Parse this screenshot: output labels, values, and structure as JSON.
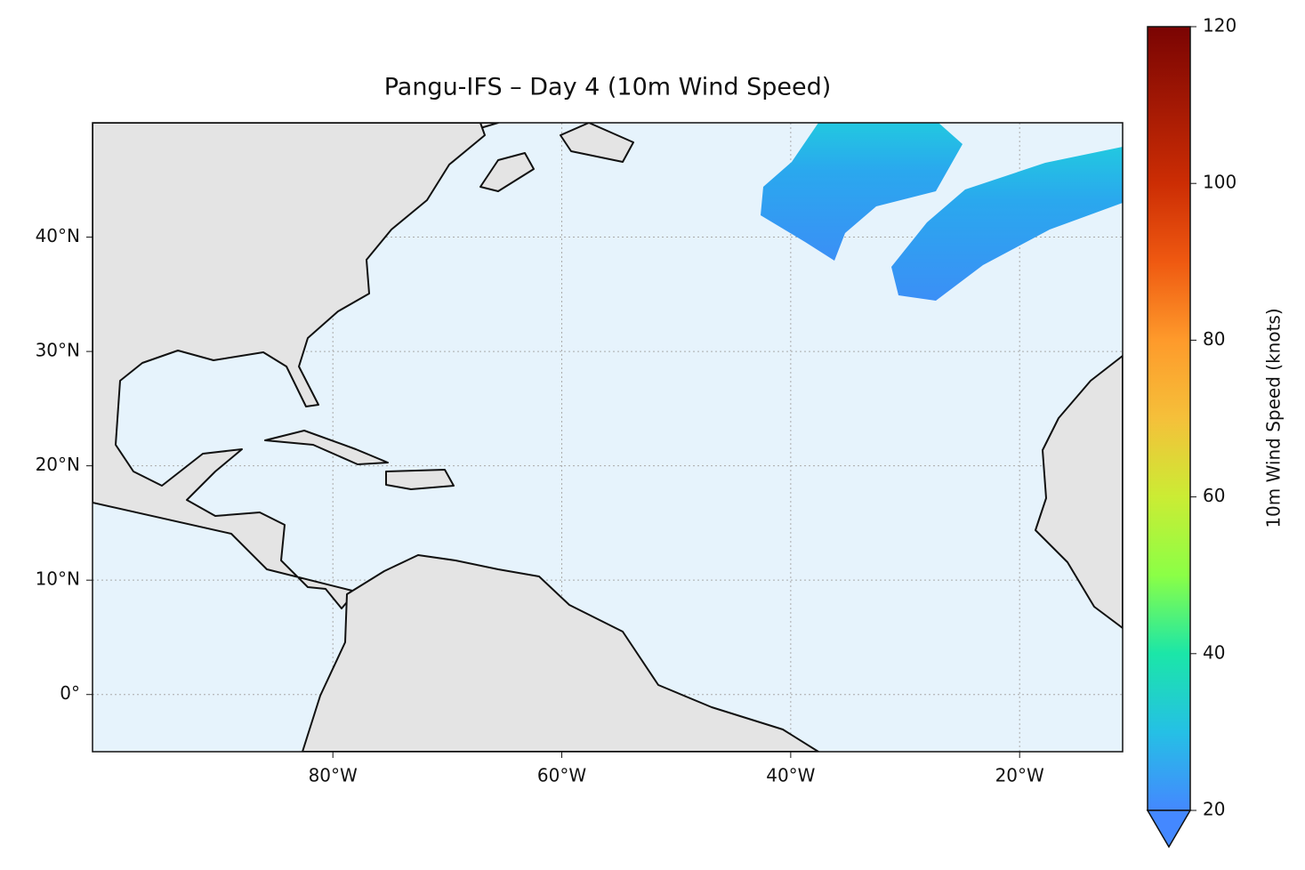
{
  "chart_data": {
    "type": "map",
    "title": "Pangu-IFS – Day 4 (10m Wind Speed)",
    "xlim": [
      -101,
      -11
    ],
    "ylim": [
      -5,
      50
    ],
    "xticks": [
      {
        "value": -80,
        "label": "80°W"
      },
      {
        "value": -60,
        "label": "60°W"
      },
      {
        "value": -40,
        "label": "40°W"
      },
      {
        "value": -20,
        "label": "20°W"
      }
    ],
    "yticks": [
      {
        "value": 0,
        "label": "0°"
      },
      {
        "value": 10,
        "label": "10°N"
      },
      {
        "value": 20,
        "label": "20°N"
      },
      {
        "value": 30,
        "label": "30°N"
      },
      {
        "value": 40,
        "label": "40°N"
      }
    ],
    "grid": true,
    "colorbar": {
      "label": "10m Wind Speed (knots)",
      "lim": [
        20,
        120
      ],
      "ticks": [
        20,
        40,
        60,
        80,
        100,
        120
      ],
      "colormap": "turbo",
      "extend": "min"
    }
  }
}
